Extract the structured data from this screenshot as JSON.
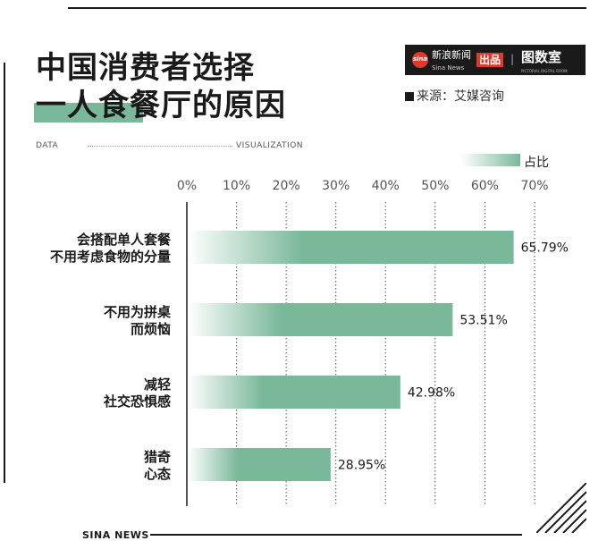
{
  "title": [
    "中国消费者选择",
    "一人食餐厅的原因"
  ],
  "brand": {
    "sina_logo": "sina",
    "sina_name": "新浪新闻",
    "sina_sub": "Sina News",
    "badge": "出品",
    "divider": "|",
    "partner": "图数室",
    "partner_sub": "PICTORIAL DIGITAL ROOM"
  },
  "source": "来源：艾媒咨询",
  "data_label": "DATA",
  "visualization_label": "VISUALIZATION",
  "footer": "SINA NEWS",
  "colors": {
    "bar": "#7ab89a",
    "text": "#1a1a1a",
    "grid": "#555555"
  },
  "chart_data": {
    "type": "bar",
    "orientation": "horizontal",
    "categories": [
      [
        "会搭配单人套餐",
        "不用考虑食物的分量"
      ],
      [
        "不用为拼桌",
        "而烦恼"
      ],
      [
        "减轻",
        "社交恐惧感"
      ],
      [
        "猎奇",
        "心态"
      ]
    ],
    "values": [
      65.79,
      53.51,
      42.98,
      28.95
    ],
    "value_labels": [
      "65.79%",
      "53.51%",
      "42.98%",
      "28.95%"
    ],
    "series": [
      {
        "name": "占比",
        "values": [
          65.79,
          53.51,
          42.98,
          28.95
        ]
      }
    ],
    "xticks": [
      "0%",
      "10%",
      "20%",
      "30%",
      "40%",
      "50%",
      "60%",
      "70%"
    ],
    "xlim": [
      0,
      70
    ],
    "grid": true,
    "legend": "top-right"
  }
}
